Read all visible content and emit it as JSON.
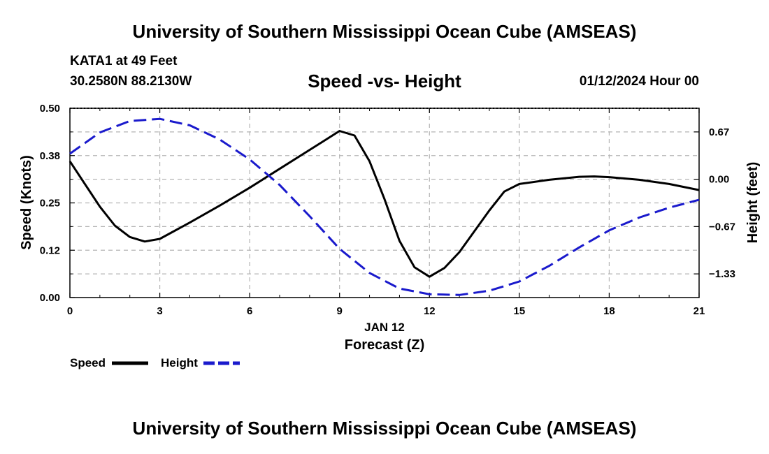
{
  "page": {
    "title_top": "University of Southern Mississippi Ocean Cube (AMSEAS)",
    "title_bottom": "University of Southern Mississippi Ocean Cube (AMSEAS)",
    "station": "KATA1 at 49 Feet",
    "coords": "30.2580N  88.2130W",
    "subtitle": "Speed -vs- Height",
    "datetime": "01/12/2024 Hour 00"
  },
  "colors": {
    "speed": "#000000",
    "height": "#1a1acc",
    "grid": "#b4b4b4"
  },
  "chart_data": {
    "type": "line",
    "title": "Speed -vs- Height",
    "xlabel": "Forecast (Z)",
    "xlabel_date": "JAN 12",
    "xlim": [
      0,
      21
    ],
    "x_ticks": [
      0,
      3,
      6,
      9,
      12,
      15,
      18,
      21
    ],
    "x_tick_labels": [
      "0",
      "3",
      "6",
      "9",
      "12",
      "15",
      "18",
      "21"
    ],
    "y_left": {
      "label": "Speed (Knots)",
      "lim": [
        0,
        0.5
      ],
      "ticks": [
        0,
        0.125,
        0.25,
        0.375,
        0.5
      ],
      "tick_labels": [
        "0.00",
        "0.12",
        "0.25",
        "0.38",
        "0.50"
      ]
    },
    "y_right": {
      "label": "Height (feet)",
      "lim": [
        -1.6667,
        1.0
      ],
      "ticks": [
        -1.3333,
        -0.6667,
        0.0,
        0.6667
      ],
      "tick_labels": [
        "−1.33",
        "−0.67",
        "0.00",
        "0.67"
      ]
    },
    "grid": true,
    "series": [
      {
        "name": "Speed",
        "axis": "left",
        "style": "solid",
        "x": [
          0,
          0.5,
          1,
          1.5,
          2,
          2.5,
          3,
          4,
          5,
          6,
          7,
          8,
          8.5,
          9,
          9.5,
          10,
          10.5,
          11,
          11.5,
          12,
          12.5,
          13,
          14,
          14.5,
          15,
          16,
          17,
          17.5,
          18,
          19,
          20,
          21
        ],
        "y": [
          0.36,
          0.3,
          0.24,
          0.19,
          0.16,
          0.148,
          0.155,
          0.198,
          0.243,
          0.29,
          0.34,
          0.39,
          0.415,
          0.44,
          0.428,
          0.36,
          0.26,
          0.15,
          0.08,
          0.055,
          0.078,
          0.12,
          0.23,
          0.28,
          0.3,
          0.311,
          0.319,
          0.32,
          0.318,
          0.311,
          0.3,
          0.284
        ]
      },
      {
        "name": "Height",
        "axis": "right",
        "style": "dashed",
        "x": [
          0,
          1,
          2,
          3,
          4,
          5,
          6,
          7,
          8,
          9,
          10,
          11,
          12,
          13,
          14,
          15,
          16,
          17,
          18,
          19,
          20,
          21
        ],
        "y": [
          0.36,
          0.66,
          0.82,
          0.85,
          0.76,
          0.56,
          0.28,
          -0.08,
          -0.52,
          -0.98,
          -1.32,
          -1.54,
          -1.62,
          -1.63,
          -1.57,
          -1.44,
          -1.22,
          -0.96,
          -0.72,
          -0.54,
          -0.4,
          -0.29
        ]
      }
    ],
    "legend": [
      {
        "label": "Speed",
        "series": "Speed"
      },
      {
        "label": "Height",
        "series": "Height"
      }
    ]
  }
}
